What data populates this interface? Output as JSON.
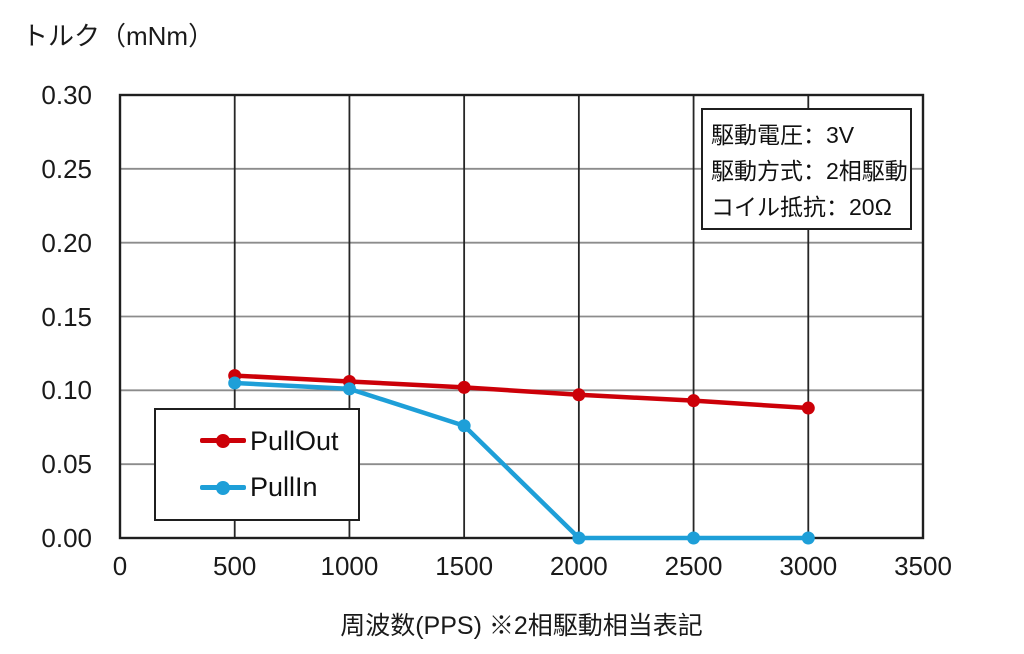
{
  "chart_data": {
    "type": "line",
    "title": "",
    "ylabel": "トルク（mNm）",
    "xlabel": "周波数(PPS) ※2相駆動相当表記",
    "xlim": [
      0,
      3500
    ],
    "ylim": [
      0,
      0.3
    ],
    "x_ticks": [
      0,
      500,
      1000,
      1500,
      2000,
      2500,
      3000,
      3500
    ],
    "y_ticks": [
      0,
      0.05,
      0.1,
      0.15,
      0.2,
      0.25,
      0.3
    ],
    "grid": true,
    "legend_position": "inside-lower-left",
    "series": [
      {
        "name": "PullOut",
        "color": "#cc0008",
        "x": [
          500,
          1000,
          1500,
          2000,
          2500,
          3000
        ],
        "values": [
          0.11,
          0.106,
          0.102,
          0.097,
          0.093,
          0.088
        ]
      },
      {
        "name": "PullIn",
        "color": "#1e9fd8",
        "x": [
          500,
          1000,
          1500,
          2000,
          2500,
          3000
        ],
        "values": [
          0.105,
          0.101,
          0.076,
          0.0,
          0.0,
          0.0
        ]
      }
    ]
  },
  "annotation": {
    "lines": [
      "駆動電圧：3V",
      "駆動方式：2相駆動",
      "コイル抵抗：20Ω"
    ]
  },
  "colors": {
    "pullout": "#cc0008",
    "pullin": "#1e9fd8",
    "grid_horizontal": "#8c8c8c",
    "grid_vertical": "#262626",
    "plot_border": "#1f1f1f",
    "text": "#1a1a1a",
    "background": "#ffffff"
  }
}
